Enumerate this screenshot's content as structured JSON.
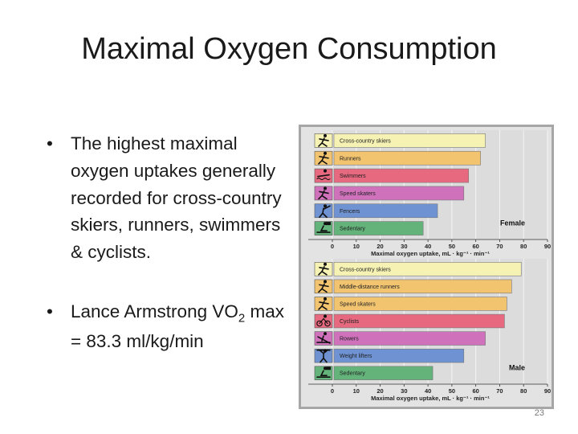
{
  "slide": {
    "title": "Maximal Oxygen Consumption",
    "bullet1": "The highest maximal oxygen uptakes generally recorded for cross-country skiers, runners, swimmers & cyclists.",
    "bullet2_pre": "Lance Armstrong VO",
    "bullet2_sub": "2",
    "bullet2_post": " max = 83.3 ml/kg/min",
    "bullet_glyph": "•",
    "page_number": "23"
  },
  "chart_data": [
    {
      "type": "bar",
      "orientation": "horizontal",
      "title": "Female",
      "xlabel": "Maximal oxygen uptake, mL · kg⁻¹ · min⁻¹",
      "xlim": [
        0,
        90
      ],
      "xticks": [
        "0",
        "10",
        "20",
        "30",
        "40",
        "50",
        "60",
        "70",
        "80",
        "90"
      ],
      "grid": true,
      "categories": [
        "Cross-country skiers",
        "Runners",
        "Swimmers",
        "Speed skaters",
        "Fencers",
        "Sedentary"
      ],
      "values": [
        64,
        62,
        57,
        55,
        44,
        38
      ],
      "icons": [
        "skier-icon",
        "runner-icon",
        "swimmer-icon",
        "speed-skater-icon",
        "fencer-icon",
        "sedentary-icon"
      ],
      "colors": [
        "#f6f2b4",
        "#f2c470",
        "#e6697f",
        "#cf72bb",
        "#6f93d2",
        "#63b37a"
      ]
    },
    {
      "type": "bar",
      "orientation": "horizontal",
      "title": "Male",
      "xlabel": "Maximal oxygen uptake, mL · kg⁻¹ · min⁻¹",
      "xlim": [
        0,
        90
      ],
      "xticks": [
        "0",
        "10",
        "20",
        "30",
        "40",
        "50",
        "60",
        "70",
        "80",
        "90"
      ],
      "grid": true,
      "categories": [
        "Cross-country skiers",
        "Middle-distance runners",
        "Speed skaters",
        "Cyclists",
        "Rowers",
        "Weight lifters",
        "Sedentary"
      ],
      "values": [
        79,
        75,
        73,
        72,
        64,
        55,
        42
      ],
      "icons": [
        "skier-icon",
        "runner-icon",
        "speed-skater-icon",
        "cyclist-icon",
        "rower-icon",
        "weight-lifter-icon",
        "sedentary-icon"
      ],
      "colors": [
        "#f6f2b4",
        "#f2c470",
        "#f2c470",
        "#e6697f",
        "#cf72bb",
        "#6f93d2",
        "#63b37a"
      ]
    }
  ]
}
